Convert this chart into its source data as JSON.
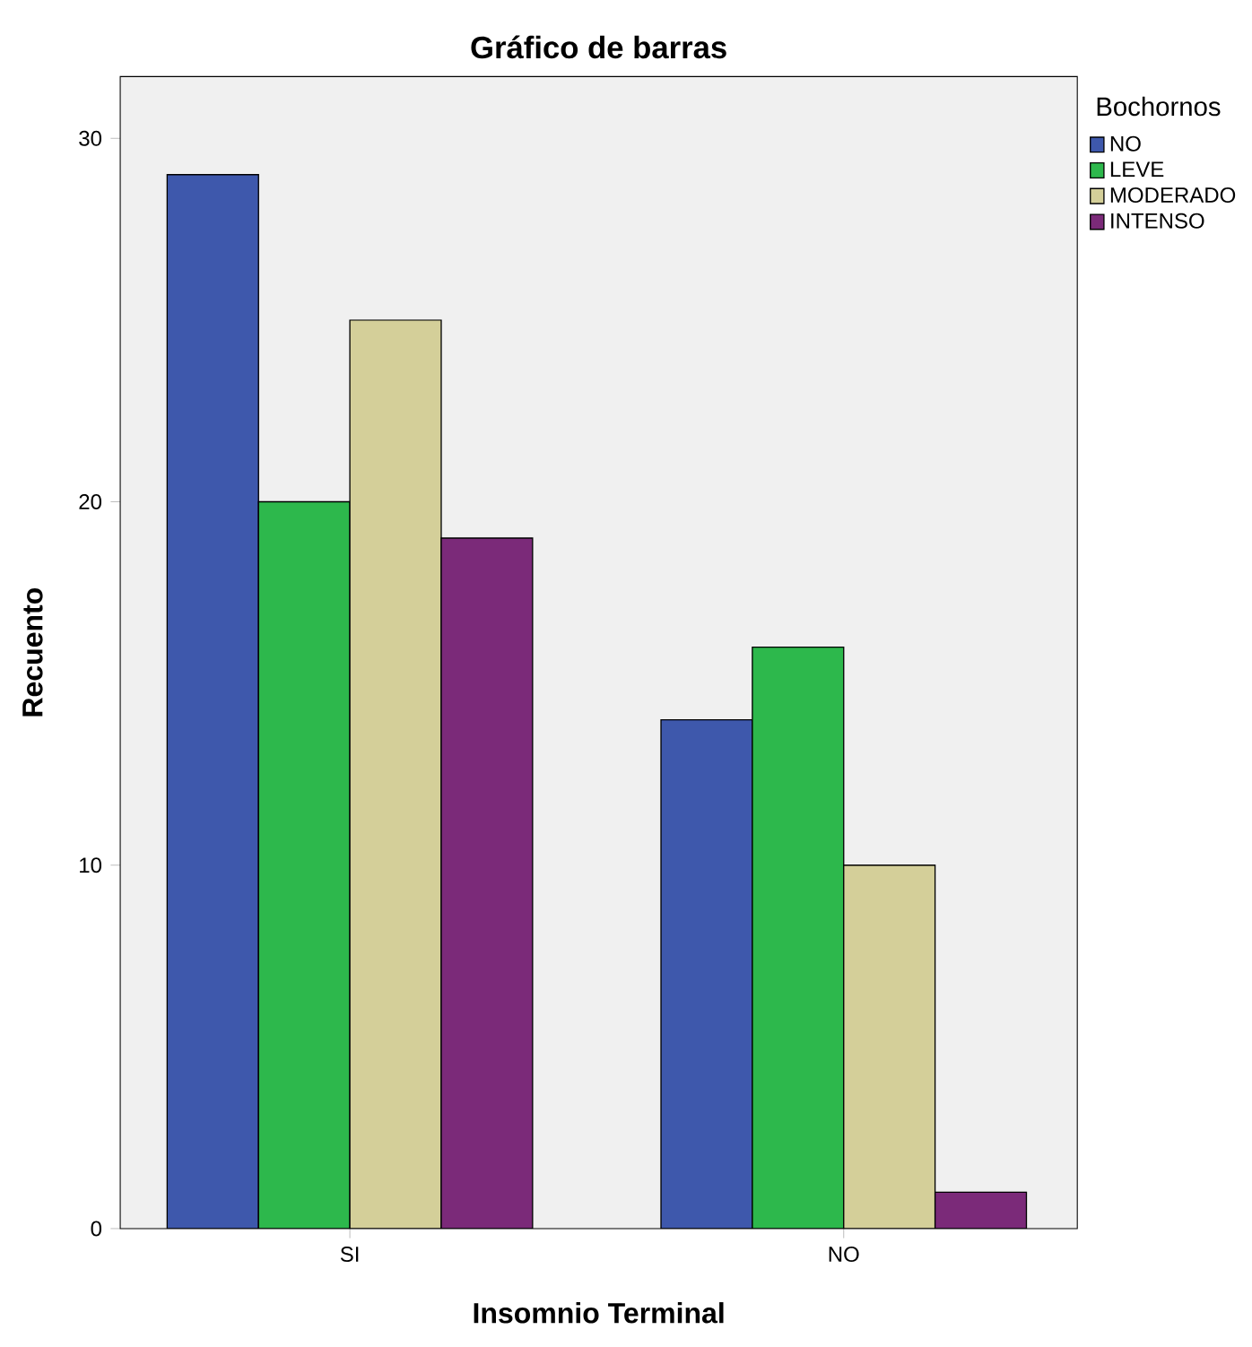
{
  "chart_data": {
    "type": "bar",
    "title": "Gráfico de barras",
    "xlabel": "Insomnio Terminal",
    "ylabel": "Recuento",
    "legend_title": "Bochornos",
    "categories": [
      "SI",
      "NO"
    ],
    "series": [
      {
        "name": "NO",
        "color": "#3e58ac",
        "values": [
          29,
          14
        ]
      },
      {
        "name": "LEVE",
        "color": "#2db84c",
        "values": [
          20,
          16
        ]
      },
      {
        "name": "MODERADO",
        "color": "#d4cf99",
        "values": [
          25,
          10
        ]
      },
      {
        "name": "INTENSO",
        "color": "#7b2a79",
        "values": [
          19,
          1
        ]
      }
    ],
    "ylim": [
      0,
      31.7
    ],
    "yticks": [
      0,
      10,
      20,
      30
    ],
    "grid": false,
    "legend": "top right"
  }
}
